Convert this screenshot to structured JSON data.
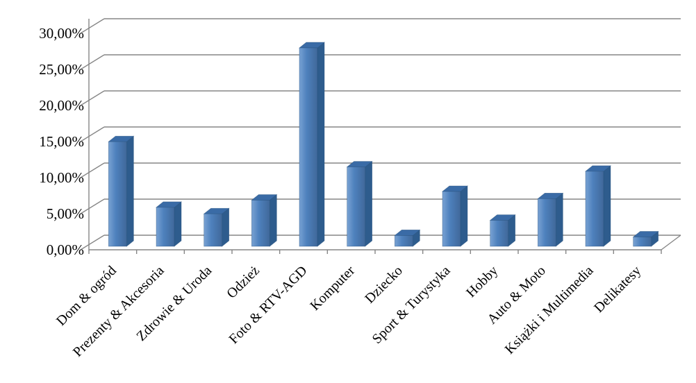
{
  "chart_data": {
    "type": "bar",
    "style": "3d-column",
    "title": "",
    "legend": "none",
    "grid": true,
    "value_unit": "%",
    "number_format": "0,00%",
    "categories": [
      "Dom & ogród",
      "Prezenty & Akcesoria",
      "Zdrowie & Uroda",
      "Odzież",
      "Foto & RTV-AGD",
      "Komputer",
      "Dziecko",
      "Sport & Turystyka",
      "Hobby",
      "Auto & Moto",
      "Książki i Multimedia",
      "Delikatesy"
    ],
    "values": [
      14.5,
      5.4,
      4.5,
      6.4,
      27.5,
      11.0,
      1.5,
      7.6,
      3.6,
      6.6,
      10.4,
      1.3
    ],
    "y_tick_labels": [
      "0,00%",
      "5,00%",
      "10,00%",
      "15,00%",
      "20,00%",
      "25,00%",
      "30,00%"
    ],
    "y_tick_values": [
      0,
      5,
      10,
      15,
      20,
      25,
      30
    ],
    "ylim": [
      0,
      30
    ],
    "y_tick_step": 5,
    "colors": {
      "background": "#FFFFFF",
      "gridline": "#858585",
      "axis": "#858585",
      "text": "#000000",
      "bar_front": "#4E81BD",
      "bar_front_light": "#79A2D3",
      "bar_front_dark": "#40689A",
      "bar_side": "#2E5C8D",
      "bar_top": "#3A6BA6",
      "bar_edge": "#26507C"
    }
  }
}
